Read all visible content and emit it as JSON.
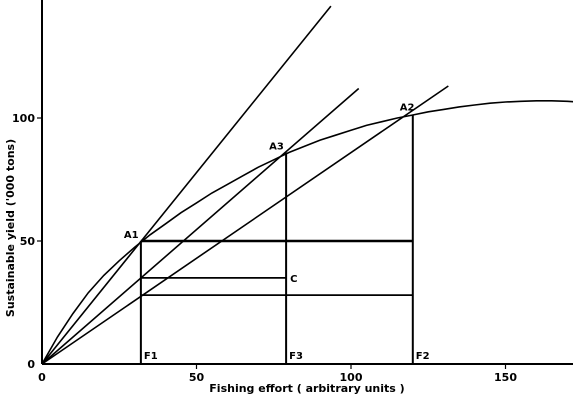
{
  "chart_data": {
    "type": "line",
    "xlabel": "Fishing effort ( arbitrary units )",
    "ylabel": "Sustainable yield ('000 tons)",
    "xlim": [
      0,
      172
    ],
    "ylim": [
      0,
      147
    ],
    "x_ticks": [
      {
        "value": 0,
        "label": "0"
      },
      {
        "value": 50,
        "label": "50"
      },
      {
        "value": 100,
        "label": "100"
      },
      {
        "value": 150,
        "label": "150"
      }
    ],
    "y_ticks": [
      {
        "value": 0,
        "label": "0"
      },
      {
        "value": 50,
        "label": "50"
      },
      {
        "value": 100,
        "label": "100"
      }
    ],
    "yield_curve": {
      "x": [
        0,
        5,
        10,
        15,
        20,
        25,
        30,
        35,
        40,
        45,
        50,
        55,
        60,
        65,
        70,
        75,
        80,
        85,
        90,
        95,
        100,
        105,
        110,
        115,
        120,
        125,
        130,
        135,
        140,
        145,
        150,
        155,
        160,
        165,
        170,
        173
      ],
      "y": [
        0,
        11,
        20.5,
        29,
        36,
        42,
        47.5,
        52.5,
        57,
        61.5,
        65.5,
        69.5,
        73,
        76.5,
        80,
        83,
        86,
        88.5,
        91,
        93,
        95,
        97,
        98.5,
        100,
        101.2,
        102.5,
        103.5,
        104.5,
        105.3,
        106,
        106.5,
        106.8,
        107,
        107,
        106.8,
        106.5
      ]
    },
    "rays": [
      {
        "to": [
          93.5,
          145.5
        ]
      },
      {
        "to": [
          102.5,
          112
        ]
      },
      {
        "to": [
          131.5,
          113
        ]
      }
    ],
    "points": [
      {
        "label": "A1",
        "x": 32,
        "y": 50
      },
      {
        "label": "A3",
        "x": 79,
        "y": 86
      },
      {
        "label": "A2",
        "x": 120,
        "y": 101
      },
      {
        "label": "C",
        "x": 79,
        "y": 35
      }
    ],
    "effort_markers": [
      {
        "label": "F1",
        "x": 32
      },
      {
        "label": "F3",
        "x": 79
      },
      {
        "label": "F2",
        "x": 120
      }
    ],
    "horizontal_lines": [
      {
        "y": 50,
        "x_to": 120
      },
      {
        "y": 35,
        "x_to": 79
      },
      {
        "y": 28,
        "x_to": 120
      }
    ]
  }
}
